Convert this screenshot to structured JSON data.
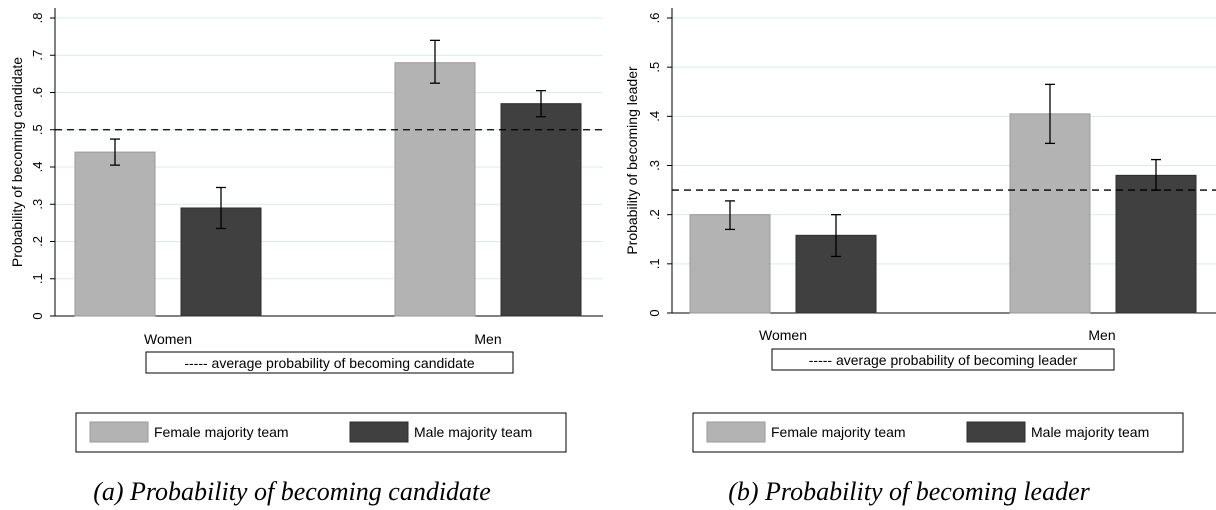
{
  "colors": {
    "female": "#b3b3b3",
    "female_stroke": "#9a9a9a",
    "male": "#404040",
    "male_stroke": "#2e2e2e",
    "axis": "#000000",
    "grid": "#d9ece9"
  },
  "chart_data": [
    {
      "type": "bar",
      "categories": [
        "Women",
        "Men"
      ],
      "series": [
        {
          "name": "Female majority team",
          "values": [
            0.44,
            0.68
          ],
          "ci_low": [
            0.405,
            0.625
          ],
          "ci_high": [
            0.475,
            0.74
          ]
        },
        {
          "name": "Male majority team",
          "values": [
            0.29,
            0.57
          ],
          "ci_low": [
            0.235,
            0.535
          ],
          "ci_high": [
            0.345,
            0.605
          ]
        }
      ],
      "reference_line": {
        "value": 0.5,
        "style": "dashed",
        "label": "----- average probability of becoming candidate"
      },
      "ylabel": "Probability of becoming candidate",
      "ylim": [
        0,
        0.8
      ],
      "yticks": [
        0,
        0.1,
        0.2,
        0.3,
        0.4,
        0.5,
        0.6,
        0.7,
        0.8
      ],
      "ytick_labels": [
        "0",
        ".1",
        ".2",
        ".3",
        ".4",
        ".5",
        ".6",
        ".7",
        ".8"
      ],
      "grid": true,
      "legend": {
        "position": "bottom",
        "entries": [
          "Female majority team",
          "Male majority team"
        ]
      },
      "caption": "(a) Probability of becoming candidate"
    },
    {
      "type": "bar",
      "categories": [
        "Women",
        "Men"
      ],
      "series": [
        {
          "name": "Female majority team",
          "values": [
            0.2,
            0.405
          ],
          "ci_low": [
            0.17,
            0.345
          ],
          "ci_high": [
            0.228,
            0.465
          ]
        },
        {
          "name": "Male majority team",
          "values": [
            0.158,
            0.28
          ],
          "ci_low": [
            0.115,
            0.25
          ],
          "ci_high": [
            0.2,
            0.312
          ]
        }
      ],
      "reference_line": {
        "value": 0.25,
        "style": "dashed",
        "label": "----- average probability of becoming leader"
      },
      "ylabel": "Probability of becoming leader",
      "ylim": [
        0,
        0.6
      ],
      "yticks": [
        0,
        0.1,
        0.2,
        0.3,
        0.4,
        0.5,
        0.6
      ],
      "ytick_labels": [
        "0",
        ".1",
        ".2",
        ".3",
        ".4",
        ".5",
        ".6"
      ],
      "grid": true,
      "legend": {
        "position": "bottom",
        "entries": [
          "Female majority team",
          "Male majority team"
        ]
      },
      "caption": "(b) Probability of becoming leader"
    }
  ]
}
